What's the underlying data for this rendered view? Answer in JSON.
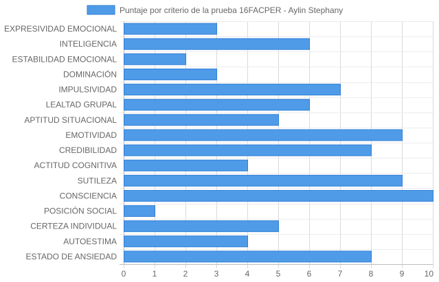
{
  "chart_data": {
    "type": "bar",
    "orientation": "horizontal",
    "categories": [
      "EXPRESIVIDAD EMOCIONAL",
      "INTELIGENCIA",
      "ESTABILIDAD EMOCIONAL",
      "DOMINACIÓN",
      "IMPULSIVIDAD",
      "LEALTAD GRUPAL",
      "APTITUD SITUACIONAL",
      "EMOTIVIDAD",
      "CREDIBILIDAD",
      "ACTITUD COGNITIVA",
      "SUTILEZA",
      "CONSCIENCIA",
      "POSICIÓN SOCIAL",
      "CERTEZA INDIVIDUAL",
      "AUTOESTIMA",
      "ESTADO DE ANSIEDAD"
    ],
    "series": [
      {
        "name": "Puntaje por criterio de la prueba 16FACPER - Aylin Stephany",
        "values": [
          3,
          6,
          2,
          3,
          7,
          6,
          5,
          9,
          8,
          4,
          9,
          10,
          1,
          5,
          4,
          8
        ],
        "color": "#4f9be8",
        "border_color": "#2f7fd6"
      }
    ],
    "xlim": [
      0,
      10
    ],
    "x_ticks": [
      "0",
      "1",
      "2",
      "3",
      "4",
      "5",
      "6",
      "7",
      "8",
      "9",
      "10"
    ],
    "grid": true,
    "legend_position": "top"
  }
}
